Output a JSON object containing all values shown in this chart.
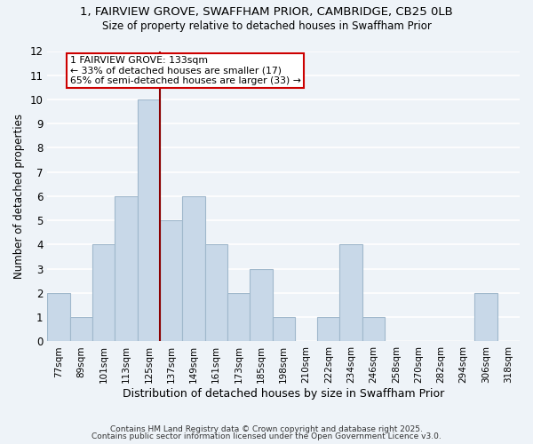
{
  "title": "1, FAIRVIEW GROVE, SWAFFHAM PRIOR, CAMBRIDGE, CB25 0LB",
  "subtitle": "Size of property relative to detached houses in Swaffham Prior",
  "xlabel": "Distribution of detached houses by size in Swaffham Prior",
  "ylabel": "Number of detached properties",
  "bin_labels": [
    "77sqm",
    "89sqm",
    "101sqm",
    "113sqm",
    "125sqm",
    "137sqm",
    "149sqm",
    "161sqm",
    "173sqm",
    "185sqm",
    "198sqm",
    "210sqm",
    "222sqm",
    "234sqm",
    "246sqm",
    "258sqm",
    "270sqm",
    "282sqm",
    "294sqm",
    "306sqm",
    "318sqm"
  ],
  "bar_heights": [
    2,
    1,
    4,
    6,
    10,
    5,
    6,
    4,
    2,
    3,
    1,
    0,
    1,
    4,
    1,
    0,
    0,
    0,
    0,
    2,
    0
  ],
  "bar_color": "#c8d8e8",
  "bar_edge_color": "#a0b8cc",
  "highlight_label": "1 FAIRVIEW GROVE: 133sqm",
  "annotation_line1": "← 33% of detached houses are smaller (17)",
  "annotation_line2": "65% of semi-detached houses are larger (33) →",
  "ylim": [
    0,
    12
  ],
  "yticks": [
    0,
    1,
    2,
    3,
    4,
    5,
    6,
    7,
    8,
    9,
    10,
    11,
    12
  ],
  "bg_color": "#eef3f8",
  "grid_color": "#ffffff",
  "footer1": "Contains HM Land Registry data © Crown copyright and database right 2025.",
  "footer2": "Contains public sector information licensed under the Open Government Licence v3.0."
}
